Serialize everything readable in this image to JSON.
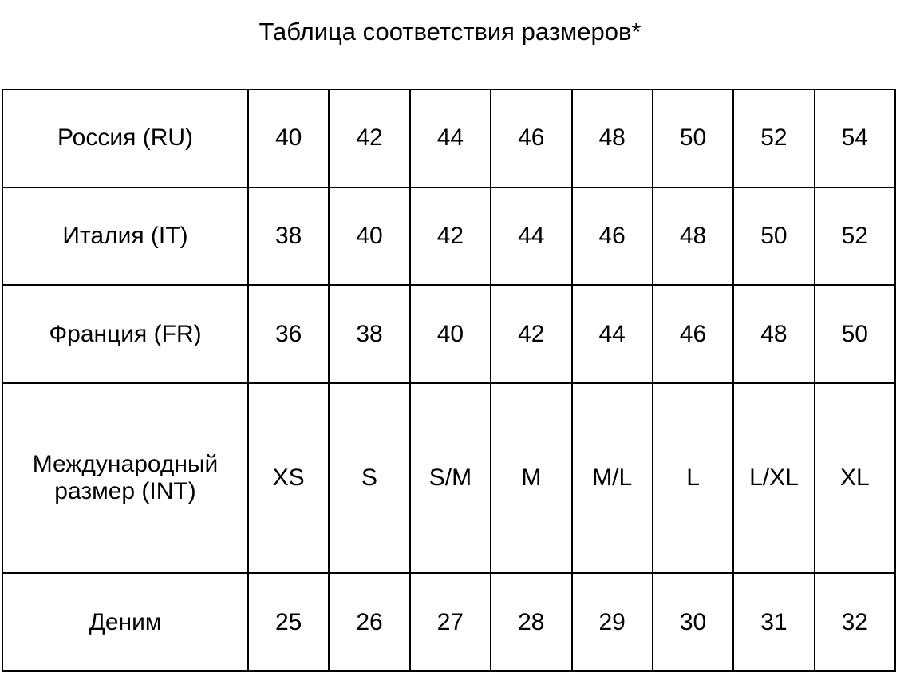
{
  "title": "Таблица соответствия размеров*",
  "rows": [
    {
      "label": "Россия (RU)",
      "values": [
        "40",
        "42",
        "44",
        "46",
        "48",
        "50",
        "52",
        "54"
      ]
    },
    {
      "label": "Италия (IT)",
      "values": [
        "38",
        "40",
        "42",
        "44",
        "46",
        "48",
        "50",
        "52"
      ]
    },
    {
      "label": "Франция (FR)",
      "values": [
        "36",
        "38",
        "40",
        "42",
        "44",
        "46",
        "48",
        "50"
      ]
    },
    {
      "label": "Международный размер  (INT)",
      "values": [
        "XS",
        "S",
        "S/M",
        "M",
        "M/L",
        "L",
        "L/XL",
        "XL"
      ]
    },
    {
      "label": "Деним",
      "values": [
        "25",
        "26",
        "27",
        "28",
        "29",
        "30",
        "31",
        "32"
      ]
    }
  ]
}
